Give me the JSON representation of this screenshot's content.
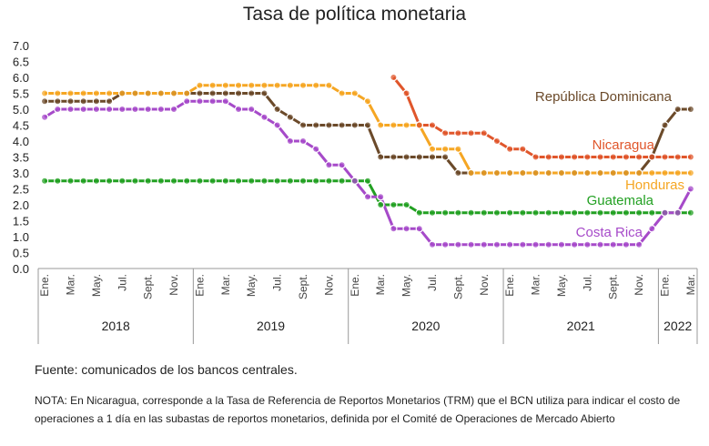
{
  "title": "Tasa de política monetaria",
  "source": "Fuente: comunicados de los bancos centrales.",
  "note": "NOTA: En Nicaragua, corresponde a la Tasa de Referencia de Reportos Monetarios (TRM) que el BCN utiliza para indicar el costo de operaciones a 1 día en las subastas de reportos monetarios, definida por el Comité de Operaciones de Mercado Abierto",
  "chart_data": {
    "type": "line",
    "title": "Tasa de política monetaria",
    "ylim": [
      0,
      7
    ],
    "yticks": [
      "0.0",
      "0.5",
      "1.0",
      "1.5",
      "2.0",
      "2.5",
      "3.0",
      "3.5",
      "4.0",
      "4.5",
      "5.0",
      "5.5",
      "6.0",
      "6.5",
      "7.0"
    ],
    "grid": false,
    "legend": "inline labels",
    "x_month_labels": [
      "Ene.",
      "Mar.",
      "May.",
      "Jul.",
      "Sept.",
      "Nov.",
      "Ene.",
      "Mar.",
      "May.",
      "Jul.",
      "Sept.",
      "Nov.",
      "Ene.",
      "Mar.",
      "May.",
      "Jul.",
      "Sept.",
      "Nov.",
      "Ene.",
      "Mar.",
      "May.",
      "Jul.",
      "Sept.",
      "Nov.",
      "Ene.",
      "Mar."
    ],
    "years": [
      {
        "label": "2018",
        "months": 12
      },
      {
        "label": "2019",
        "months": 12
      },
      {
        "label": "2020",
        "months": 12
      },
      {
        "label": "2021",
        "months": 12
      },
      {
        "label": "2022",
        "months": 3
      }
    ],
    "x_start": "2018-01",
    "series": [
      {
        "name": "República Dominicana",
        "color": "#6b4a2a",
        "start": 0,
        "values": [
          5.25,
          5.25,
          5.25,
          5.25,
          5.25,
          5.25,
          5.5,
          5.5,
          5.5,
          5.5,
          5.5,
          5.5,
          5.5,
          5.5,
          5.5,
          5.5,
          5.5,
          5.5,
          5.0,
          4.75,
          4.5,
          4.5,
          4.5,
          4.5,
          4.5,
          4.5,
          3.5,
          3.5,
          3.5,
          3.5,
          3.5,
          3.5,
          3.0,
          3.0,
          3.0,
          3.0,
          3.0,
          3.0,
          3.0,
          3.0,
          3.0,
          3.0,
          3.0,
          3.0,
          3.0,
          3.0,
          3.0,
          3.5,
          4.5,
          5.0,
          5.0
        ]
      },
      {
        "name": "Honduras",
        "color": "#f5a623",
        "start": 0,
        "values": [
          5.5,
          5.5,
          5.5,
          5.5,
          5.5,
          5.5,
          5.5,
          5.5,
          5.5,
          5.5,
          5.5,
          5.5,
          5.75,
          5.75,
          5.75,
          5.75,
          5.75,
          5.75,
          5.75,
          5.75,
          5.75,
          5.75,
          5.75,
          5.5,
          5.5,
          5.25,
          4.5,
          4.5,
          4.5,
          4.5,
          3.75,
          3.75,
          3.75,
          3.0,
          3.0,
          3.0,
          3.0,
          3.0,
          3.0,
          3.0,
          3.0,
          3.0,
          3.0,
          3.0,
          3.0,
          3.0,
          3.0,
          3.0,
          3.0,
          3.0,
          3.0
        ]
      },
      {
        "name": "Nicaragua",
        "color": "#e0562b",
        "start": 27,
        "values": [
          6.0,
          5.5,
          4.5,
          4.5,
          4.25,
          4.25,
          4.25,
          4.25,
          4.0,
          3.75,
          3.75,
          3.5,
          3.5,
          3.5,
          3.5,
          3.5,
          3.5,
          3.5,
          3.5,
          3.5,
          3.5,
          3.5,
          3.5,
          3.5
        ]
      },
      {
        "name": "Guatemala",
        "color": "#22a022",
        "start": 0,
        "values": [
          2.75,
          2.75,
          2.75,
          2.75,
          2.75,
          2.75,
          2.75,
          2.75,
          2.75,
          2.75,
          2.75,
          2.75,
          2.75,
          2.75,
          2.75,
          2.75,
          2.75,
          2.75,
          2.75,
          2.75,
          2.75,
          2.75,
          2.75,
          2.75,
          2.75,
          2.75,
          2.0,
          2.0,
          2.0,
          1.75,
          1.75,
          1.75,
          1.75,
          1.75,
          1.75,
          1.75,
          1.75,
          1.75,
          1.75,
          1.75,
          1.75,
          1.75,
          1.75,
          1.75,
          1.75,
          1.75,
          1.75,
          1.75,
          1.75,
          1.75,
          1.75
        ]
      },
      {
        "name": "Costa Rica",
        "color": "#a64ac9",
        "start": 0,
        "values": [
          4.75,
          5.0,
          5.0,
          5.0,
          5.0,
          5.0,
          5.0,
          5.0,
          5.0,
          5.0,
          5.0,
          5.25,
          5.25,
          5.25,
          5.25,
          5.0,
          5.0,
          4.75,
          4.5,
          4.0,
          4.0,
          3.75,
          3.25,
          3.25,
          2.75,
          2.25,
          2.25,
          1.25,
          1.25,
          1.25,
          0.75,
          0.75,
          0.75,
          0.75,
          0.75,
          0.75,
          0.75,
          0.75,
          0.75,
          0.75,
          0.75,
          0.75,
          0.75,
          0.75,
          0.75,
          0.75,
          0.75,
          1.25,
          1.75,
          1.75,
          2.5
        ]
      }
    ]
  }
}
